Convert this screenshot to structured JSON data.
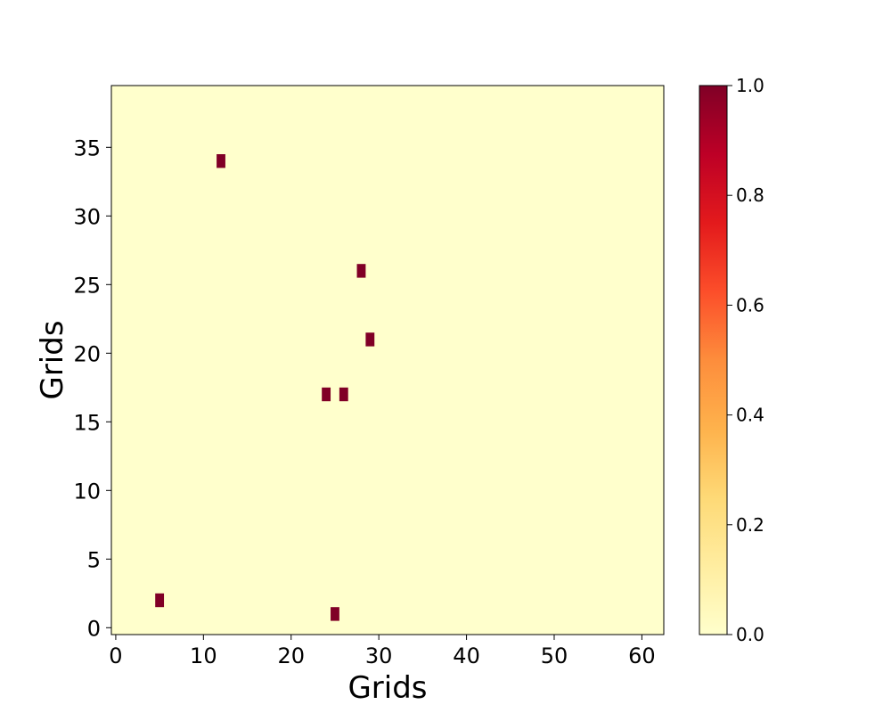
{
  "chart_data": {
    "type": "heatmap",
    "title": "",
    "xlabel": "Grids",
    "ylabel": "Grids",
    "grid_cols": 63,
    "grid_rows": 40,
    "xlim": [
      -0.5,
      62.5
    ],
    "ylim": [
      -0.5,
      39.5
    ],
    "x_ticks": [
      0,
      10,
      20,
      30,
      40,
      50,
      60
    ],
    "y_ticks": [
      0,
      5,
      10,
      15,
      20,
      25,
      30,
      35
    ],
    "background_value": 0,
    "cells": [
      {
        "x": 12,
        "y": 34,
        "value": 1.0
      },
      {
        "x": 28,
        "y": 26,
        "value": 1.0
      },
      {
        "x": 29,
        "y": 21,
        "value": 1.0
      },
      {
        "x": 24,
        "y": 17,
        "value": 1.0
      },
      {
        "x": 26,
        "y": 17,
        "value": 1.0
      },
      {
        "x": 5,
        "y": 2,
        "value": 1.0
      },
      {
        "x": 25,
        "y": 1,
        "value": 1.0
      }
    ],
    "colorbar": {
      "colormap": "YlOrRd",
      "range": [
        0.0,
        1.0
      ],
      "ticks": [
        "0.0",
        "0.2",
        "0.4",
        "0.6",
        "0.8",
        "1.0"
      ],
      "placement": "right"
    },
    "colors": {
      "low": "#ffffcc",
      "high": "#800026"
    }
  }
}
